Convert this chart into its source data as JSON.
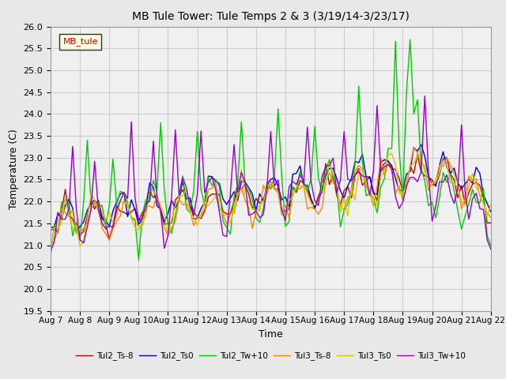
{
  "title": "MB Tule Tower: Tule Temps 2 & 3 (3/19/14-3/23/17)",
  "xlabel": "Time",
  "ylabel": "Temperature (C)",
  "ylim": [
    19.5,
    26.0
  ],
  "yticks": [
    19.5,
    20.0,
    20.5,
    21.0,
    21.5,
    22.0,
    22.5,
    23.0,
    23.5,
    24.0,
    24.5,
    25.0,
    25.5,
    26.0
  ],
  "legend_label": "MB_tule",
  "series_labels": [
    "Tul2_Ts-8",
    "Tul2_Ts0",
    "Tul2_Tw+10",
    "Tul3_Ts-8",
    "Tul3_Ts0",
    "Tul3_Tw+10"
  ],
  "series_colors": [
    "#cc0000",
    "#0000cc",
    "#00cc00",
    "#ff8800",
    "#cccc00",
    "#9900cc"
  ],
  "x_tick_labels": [
    "Aug 7",
    "Aug 8",
    "Aug 9",
    "Aug 10",
    "Aug 11",
    "Aug 12",
    "Aug 13",
    "Aug 14",
    "Aug 15",
    "Aug 16",
    "Aug 17",
    "Aug 18",
    "Aug 19",
    "Aug 20",
    "Aug 21",
    "Aug 22"
  ],
  "background_color": "#e8e8e8",
  "plot_bg_color": "#f0f0f0",
  "grid_color": "#cccccc"
}
